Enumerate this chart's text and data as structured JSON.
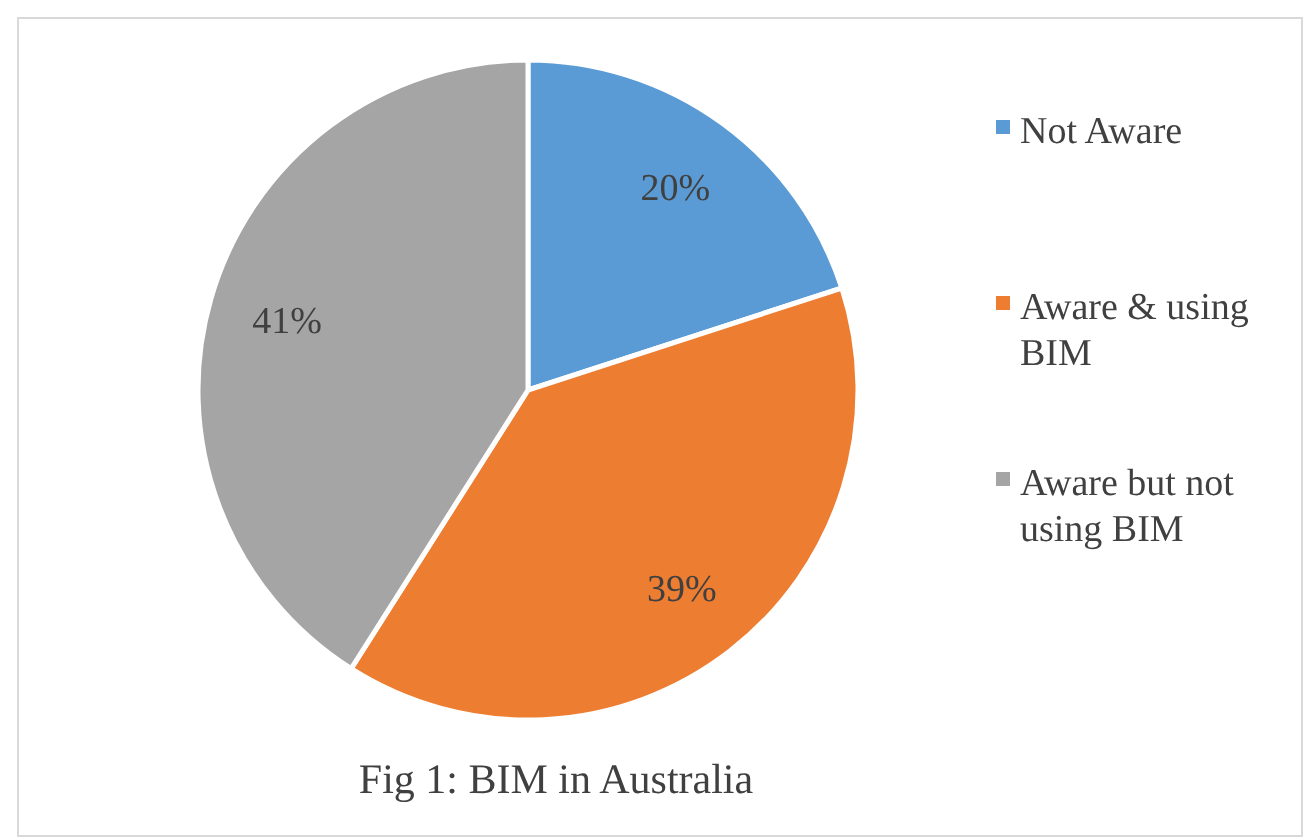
{
  "chart_data": {
    "type": "pie",
    "title": "Fig 1: BIM in Australia",
    "categories": [
      "Not Aware",
      "Aware & using BIM",
      "Aware but not using BIM"
    ],
    "values": [
      20,
      39,
      41
    ],
    "colors": [
      "#5b9bd5",
      "#ed7d31",
      "#a5a5a5"
    ],
    "value_labels": [
      "20%",
      "39%",
      "41%"
    ],
    "legend": "right"
  }
}
